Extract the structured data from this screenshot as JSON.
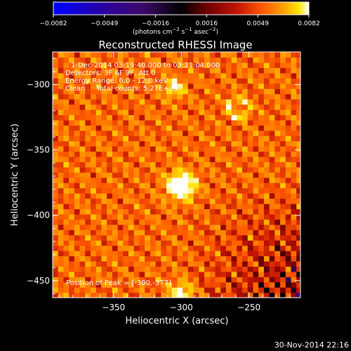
{
  "chart_data": {
    "type": "heatmap",
    "title": "Reconstructed RHESSI Image",
    "xlabel": "Heliocentric X (arcsec)",
    "ylabel": "Heliocentric Y (arcsec)",
    "xlim": [
      -395,
      -212
    ],
    "ylim": [
      -463,
      -275
    ],
    "x_ticks": [
      {
        "value": -350,
        "label": "−350"
      },
      {
        "value": -300,
        "label": "−300"
      },
      {
        "value": -250,
        "label": "−250"
      }
    ],
    "y_ticks": [
      {
        "value": -300,
        "label": "−300"
      },
      {
        "value": -350,
        "label": "−350"
      },
      {
        "value": -400,
        "label": "−400"
      },
      {
        "value": -450,
        "label": "−450"
      }
    ],
    "colorbar": {
      "min": -0.0082,
      "max": 0.0082,
      "ticks": [
        "−0.0082",
        "−0.0049",
        "−0.0016",
        "0.0016",
        "0.0049",
        "0.0082"
      ],
      "units_main": "(photons cm",
      "units_sup1": "−2",
      "units_mid": " s",
      "units_sup2": "−1",
      "units_mid2": " asec",
      "units_sup3": "−2",
      "units_end": ")"
    },
    "annotations": {
      "time_range": "1-Dec-2014 03:19:40.000 to 03:21:04.000",
      "detectors": "Detectors: 3F 6F 9F, Att 0",
      "energy": "Energy Range: 6.0 - 12.0 keV",
      "method": "Clean     Total counts: 5.27E+03",
      "peak": "Position of Peak = [-300,-377]"
    },
    "sources": [
      {
        "name": "main",
        "x": -300,
        "y": -377,
        "amp": 1.0,
        "sigma": 7
      },
      {
        "name": "north",
        "x": -305,
        "y": -302,
        "amp": 0.55,
        "sigma": 5
      },
      {
        "name": "ring",
        "x": -258,
        "y": -318,
        "amp": 0.45,
        "sigma": 6
      },
      {
        "name": "bottom",
        "x": -300,
        "y": -460,
        "amp": 0.6,
        "sigma": 6
      }
    ],
    "colormap": [
      "#0000ff",
      "#2a00a0",
      "#3c0a6a",
      "#000000",
      "#6e0000",
      "#c21400",
      "#ff5a00",
      "#ffa000",
      "#ffe600",
      "#ffffff"
    ]
  },
  "footer": {
    "timestamp": "30-Nov-2014 22:16"
  }
}
